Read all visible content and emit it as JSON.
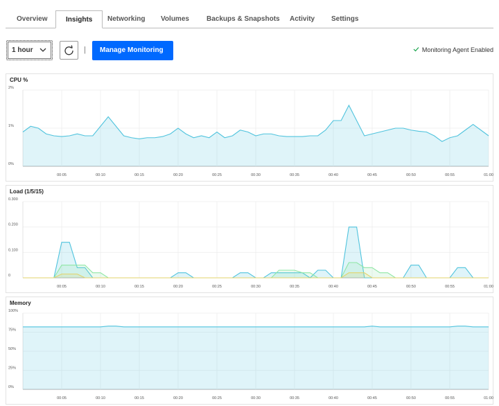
{
  "tabs": [
    "Overview",
    "Insights",
    "Networking",
    "Volumes",
    "Backups & Snapshots",
    "Activity",
    "Settings"
  ],
  "active_tab": 1,
  "toolbar": {
    "range": "1 hour",
    "separator": "|",
    "button": "Manage Monitoring",
    "status": "Monitoring Agent Enabled"
  },
  "chart_data": [
    {
      "type": "line",
      "title": "CPU %",
      "x": [
        0,
        1,
        2,
        3,
        4,
        5,
        6,
        7,
        8,
        9,
        10,
        11,
        12,
        13,
        14,
        15,
        16,
        17,
        18,
        19,
        20,
        21,
        22,
        23,
        24,
        25,
        26,
        27,
        28,
        29,
        30,
        31,
        32,
        33,
        34,
        35,
        36,
        37,
        38,
        39,
        40,
        41,
        42,
        43,
        44,
        45,
        46,
        47,
        48,
        49,
        50,
        51,
        52,
        53,
        54,
        55,
        56,
        57,
        58,
        59,
        60
      ],
      "series": [
        {
          "color": "#4fc3dd",
          "values": [
            0.9,
            1.05,
            1.0,
            0.85,
            0.8,
            0.78,
            0.8,
            0.85,
            0.8,
            0.8,
            1.05,
            1.3,
            1.05,
            0.8,
            0.75,
            0.72,
            0.75,
            0.75,
            0.78,
            0.85,
            1.0,
            0.85,
            0.75,
            0.8,
            0.75,
            0.9,
            0.75,
            0.8,
            0.95,
            0.9,
            0.8,
            0.85,
            0.85,
            0.8,
            0.78,
            0.78,
            0.78,
            0.8,
            0.8,
            0.95,
            1.2,
            1.2,
            1.6,
            1.2,
            0.8,
            0.85,
            0.9,
            0.95,
            1.0,
            1.0,
            0.95,
            0.92,
            0.9,
            0.8,
            0.65,
            0.75,
            0.8,
            0.95,
            1.1,
            0.95,
            0.8
          ]
        }
      ],
      "xlim": [
        0,
        60
      ],
      "xticks": [
        {
          "value": 5,
          "label": "00:05"
        },
        {
          "value": 10,
          "label": "00:10"
        },
        {
          "value": 15,
          "label": "00:15"
        },
        {
          "value": 20,
          "label": "00:20"
        },
        {
          "value": 25,
          "label": "00:25"
        },
        {
          "value": 30,
          "label": "00:30"
        },
        {
          "value": 35,
          "label": "00:35"
        },
        {
          "value": 40,
          "label": "00:40"
        },
        {
          "value": 45,
          "label": "00:45"
        },
        {
          "value": 50,
          "label": "00:50"
        },
        {
          "value": 55,
          "label": "00:55"
        },
        {
          "value": 60,
          "label": "01:00"
        }
      ],
      "ylim": [
        0,
        2
      ],
      "yticks": [
        {
          "value": 0,
          "label": "0%"
        },
        {
          "value": 1,
          "label": "1%"
        },
        {
          "value": 2,
          "label": "2%"
        }
      ],
      "grid": true
    },
    {
      "type": "line",
      "title": "Load (1/5/15)",
      "x": [
        0,
        1,
        2,
        3,
        4,
        5,
        6,
        7,
        8,
        9,
        10,
        11,
        12,
        13,
        14,
        15,
        16,
        17,
        18,
        19,
        20,
        21,
        22,
        23,
        24,
        25,
        26,
        27,
        28,
        29,
        30,
        31,
        32,
        33,
        34,
        35,
        36,
        37,
        38,
        39,
        40,
        41,
        42,
        43,
        44,
        45,
        46,
        47,
        48,
        49,
        50,
        51,
        52,
        53,
        54,
        55,
        56,
        57,
        58,
        59,
        60
      ],
      "series": [
        {
          "color": "#4fc3dd",
          "values": [
            0,
            0,
            0,
            0,
            0,
            0.14,
            0.14,
            0.04,
            0.04,
            0,
            0,
            0,
            0,
            0,
            0,
            0,
            0,
            0,
            0,
            0,
            0.02,
            0.02,
            0,
            0,
            0,
            0,
            0,
            0,
            0.02,
            0.02,
            0,
            0,
            0.02,
            0.02,
            0.02,
            0.02,
            0.02,
            0,
            0.03,
            0.03,
            0,
            0,
            0.2,
            0.2,
            0,
            0,
            0,
            0,
            0,
            0,
            0.05,
            0.05,
            0,
            0,
            0,
            0,
            0.04,
            0.04,
            0,
            0,
            0
          ]
        },
        {
          "color": "#8ee6a4",
          "values": [
            0,
            0,
            0,
            0,
            0,
            0.05,
            0.05,
            0.05,
            0.05,
            0.02,
            0.02,
            0,
            0,
            0,
            0,
            0,
            0,
            0,
            0,
            0,
            0,
            0,
            0,
            0,
            0,
            0,
            0,
            0,
            0,
            0,
            0,
            0,
            0,
            0.03,
            0.03,
            0.03,
            0.02,
            0.02,
            0,
            0,
            0,
            0,
            0.06,
            0.06,
            0.04,
            0.04,
            0.02,
            0.02,
            0,
            0,
            0,
            0,
            0,
            0,
            0,
            0,
            0,
            0,
            0,
            0,
            0
          ]
        },
        {
          "color": "#e3d36b",
          "values": [
            0,
            0,
            0,
            0,
            0,
            0.015,
            0.015,
            0.015,
            0,
            0,
            0,
            0,
            0,
            0,
            0,
            0,
            0,
            0,
            0,
            0,
            0,
            0,
            0,
            0,
            0,
            0,
            0,
            0,
            0,
            0,
            0,
            0,
            0,
            0,
            0,
            0,
            0,
            0,
            0,
            0,
            0,
            0,
            0.02,
            0.02,
            0.02,
            0,
            0,
            0,
            0,
            0,
            0,
            0,
            0,
            0,
            0,
            0,
            0,
            0,
            0,
            0,
            0
          ]
        }
      ],
      "xlim": [
        0,
        60
      ],
      "xticks": [
        {
          "value": 5,
          "label": "00:05"
        },
        {
          "value": 10,
          "label": "00:10"
        },
        {
          "value": 15,
          "label": "00:15"
        },
        {
          "value": 20,
          "label": "00:20"
        },
        {
          "value": 25,
          "label": "00:25"
        },
        {
          "value": 30,
          "label": "00:30"
        },
        {
          "value": 35,
          "label": "00:35"
        },
        {
          "value": 40,
          "label": "00:40"
        },
        {
          "value": 45,
          "label": "00:45"
        },
        {
          "value": 50,
          "label": "00:50"
        },
        {
          "value": 55,
          "label": "00:55"
        },
        {
          "value": 60,
          "label": "01:00"
        }
      ],
      "ylim": [
        0,
        0.3
      ],
      "yticks": [
        0,
        {
          "value": 0.1,
          "label": "0.100"
        },
        {
          "value": 0.2,
          "label": "0.200"
        },
        {
          "value": 0.3,
          "label": "0.300"
        }
      ],
      "grid": true
    },
    {
      "type": "line",
      "title": "Memory",
      "x": [
        0,
        1,
        2,
        3,
        4,
        5,
        6,
        7,
        8,
        9,
        10,
        11,
        12,
        13,
        14,
        15,
        16,
        17,
        18,
        19,
        20,
        21,
        22,
        23,
        24,
        25,
        26,
        27,
        28,
        29,
        30,
        31,
        32,
        33,
        34,
        35,
        36,
        37,
        38,
        39,
        40,
        41,
        42,
        43,
        44,
        45,
        46,
        47,
        48,
        49,
        50,
        51,
        52,
        53,
        54,
        55,
        56,
        57,
        58,
        59,
        60
      ],
      "series": [
        {
          "color": "#4fc3dd",
          "values": [
            82,
            82,
            82,
            82,
            82,
            82,
            82,
            82,
            82,
            82,
            82,
            83,
            83,
            82,
            82,
            82,
            82,
            82,
            82,
            82,
            82,
            82,
            82,
            82,
            82,
            82,
            82,
            82,
            82,
            82,
            82,
            82,
            82,
            82,
            82,
            82,
            82,
            82,
            82,
            82,
            82,
            82,
            82,
            82,
            82,
            83,
            82,
            82,
            82,
            82,
            82,
            82,
            82,
            82,
            82,
            82,
            83,
            83,
            82,
            82,
            82
          ]
        }
      ],
      "xlim": [
        0,
        60
      ],
      "xticks": [
        {
          "value": 5,
          "label": "00:05"
        },
        {
          "value": 10,
          "label": "00:10"
        },
        {
          "value": 15,
          "label": "00:15"
        },
        {
          "value": 20,
          "label": "00:20"
        },
        {
          "value": 25,
          "label": "00:25"
        },
        {
          "value": 30,
          "label": "00:30"
        },
        {
          "value": 35,
          "label": "00:35"
        },
        {
          "value": 40,
          "label": "00:40"
        },
        {
          "value": 45,
          "label": "00:45"
        },
        {
          "value": 50,
          "label": "00:50"
        },
        {
          "value": 55,
          "label": "00:55"
        },
        {
          "value": 60,
          "label": "01:00"
        }
      ],
      "ylim": [
        0,
        100
      ],
      "yticks": [
        {
          "value": 0,
          "label": "0%"
        },
        {
          "value": 25,
          "label": "25%"
        },
        {
          "value": 50,
          "label": "50%"
        },
        {
          "value": 75,
          "label": "75%"
        },
        {
          "value": 100,
          "label": "100%"
        }
      ],
      "grid": true
    }
  ]
}
